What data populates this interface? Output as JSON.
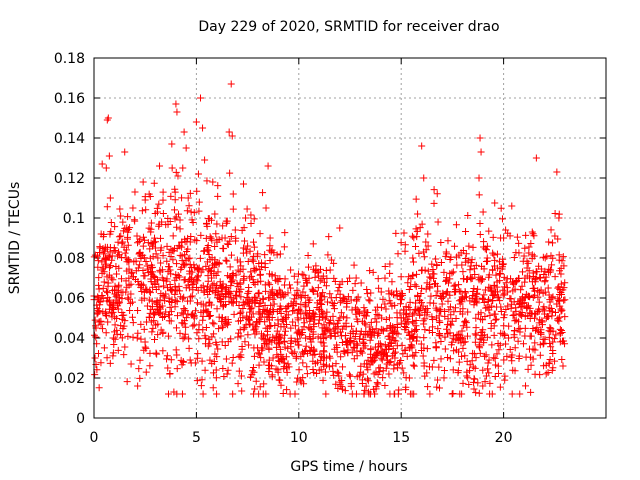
{
  "chart_data": {
    "type": "scatter",
    "title": "Day 229 of 2020, SRMTID for receiver drao",
    "xlabel": "GPS time / hours",
    "ylabel": "SRMTID / TECUs",
    "xlim": [
      0,
      25
    ],
    "ylim": [
      0,
      0.18
    ],
    "x_ticks": [
      0,
      5,
      10,
      15,
      20
    ],
    "x_tick_labels": [
      "0",
      "5",
      "10",
      "15",
      "20"
    ],
    "y_ticks": [
      0,
      0.02,
      0.04,
      0.06,
      0.08,
      0.1,
      0.12,
      0.14,
      0.16,
      0.18
    ],
    "y_tick_labels": [
      "0",
      "0.02",
      "0.04",
      "0.06",
      "0.08",
      "0.1",
      "0.12",
      "0.14",
      "0.16",
      "0.18"
    ],
    "grid": true,
    "marker": "plus",
    "series_color": "#ff0000",
    "series": [
      {
        "name": "SRMTID",
        "points": [
          [
            0.05,
            0.03
          ],
          [
            0.1,
            0.045
          ],
          [
            0.15,
            0.052
          ],
          [
            0.2,
            0.06
          ],
          [
            0.25,
            0.048
          ],
          [
            0.3,
            0.085
          ],
          [
            0.35,
            0.092
          ],
          [
            0.4,
            0.127
          ],
          [
            0.45,
            0.075
          ],
          [
            0.5,
            0.068
          ],
          [
            0.55,
            0.08
          ],
          [
            0.6,
            0.125
          ],
          [
            0.65,
            0.149
          ],
          [
            0.7,
            0.15
          ],
          [
            0.75,
            0.131
          ],
          [
            0.8,
            0.11
          ],
          [
            0.85,
            0.07
          ],
          [
            0.9,
            0.055
          ],
          [
            0.95,
            0.04
          ],
          [
            1.0,
            0.064
          ],
          [
            1.1,
            0.072
          ],
          [
            1.2,
            0.083
          ],
          [
            1.3,
            0.101
          ],
          [
            1.4,
            0.088
          ],
          [
            1.5,
            0.133
          ],
          [
            1.6,
            0.095
          ],
          [
            1.7,
            0.078
          ],
          [
            1.8,
            0.062
          ],
          [
            1.9,
            0.105
          ],
          [
            2.0,
            0.113
          ],
          [
            2.1,
            0.091
          ],
          [
            2.2,
            0.082
          ],
          [
            2.3,
            0.067
          ],
          [
            2.4,
            0.118
          ],
          [
            2.5,
            0.109
          ],
          [
            2.6,
            0.076
          ],
          [
            2.7,
            0.059
          ],
          [
            2.8,
            0.048
          ],
          [
            2.9,
            0.071
          ],
          [
            3.0,
            0.085
          ],
          [
            3.1,
            0.103
          ],
          [
            3.2,
            0.126
          ],
          [
            3.3,
            0.098
          ],
          [
            3.4,
            0.066
          ],
          [
            3.5,
            0.053
          ],
          [
            3.6,
            0.025
          ],
          [
            3.7,
            0.022
          ],
          [
            3.8,
            0.137
          ],
          [
            3.9,
            0.013
          ],
          [
            4.0,
            0.157
          ],
          [
            4.05,
            0.153
          ],
          [
            4.1,
            0.121
          ],
          [
            4.2,
            0.099
          ],
          [
            4.3,
            0.081
          ],
          [
            4.4,
            0.143
          ],
          [
            4.5,
            0.135
          ],
          [
            4.6,
            0.11
          ],
          [
            4.7,
            0.088
          ],
          [
            4.8,
            0.061
          ],
          [
            4.9,
            0.05
          ],
          [
            5.0,
            0.148
          ],
          [
            5.1,
            0.122
          ],
          [
            5.2,
            0.16
          ],
          [
            5.3,
            0.145
          ],
          [
            5.4,
            0.129
          ],
          [
            5.5,
            0.097
          ],
          [
            5.6,
            0.074
          ],
          [
            5.7,
            0.065
          ],
          [
            5.8,
            0.118
          ],
          [
            5.9,
            0.102
          ],
          [
            6.0,
            0.089
          ],
          [
            6.1,
            0.077
          ],
          [
            6.2,
            0.058
          ],
          [
            6.3,
            0.046
          ],
          [
            6.4,
            0.09
          ],
          [
            6.5,
            0.022
          ],
          [
            6.6,
            0.143
          ],
          [
            6.7,
            0.167
          ],
          [
            6.75,
            0.141
          ],
          [
            6.8,
            0.112
          ],
          [
            6.9,
            0.094
          ],
          [
            7.0,
            0.079
          ],
          [
            7.1,
            0.063
          ],
          [
            7.2,
            0.021
          ],
          [
            7.3,
            0.117
          ],
          [
            7.4,
            0.1
          ],
          [
            7.5,
            0.086
          ],
          [
            7.6,
            0.07
          ],
          [
            7.7,
            0.055
          ],
          [
            7.8,
            0.044
          ],
          [
            7.9,
            0.06
          ],
          [
            8.0,
            0.068
          ],
          [
            8.1,
            0.052
          ],
          [
            8.2,
            0.04
          ],
          [
            8.3,
            0.028
          ],
          [
            8.4,
            0.105
          ],
          [
            8.5,
            0.126
          ],
          [
            8.6,
            0.09
          ],
          [
            8.7,
            0.071
          ],
          [
            8.8,
            0.057
          ],
          [
            8.9,
            0.041
          ],
          [
            9.0,
            0.047
          ],
          [
            9.1,
            0.082
          ],
          [
            9.2,
            0.062
          ],
          [
            9.3,
            0.038
          ],
          [
            9.4,
            0.025
          ],
          [
            9.5,
            0.056
          ],
          [
            9.6,
            0.074
          ],
          [
            9.7,
            0.048
          ],
          [
            9.8,
            0.033
          ],
          [
            9.9,
            0.018
          ],
          [
            10.0,
            0.044
          ],
          [
            10.2,
            0.063
          ],
          [
            10.4,
            0.052
          ],
          [
            10.6,
            0.038
          ],
          [
            10.8,
            0.073
          ],
          [
            11.0,
            0.049
          ],
          [
            11.2,
            0.03
          ],
          [
            11.4,
            0.058
          ],
          [
            11.6,
            0.079
          ],
          [
            11.8,
            0.045
          ],
          [
            12.0,
            0.095
          ],
          [
            12.2,
            0.06
          ],
          [
            12.4,
            0.034
          ],
          [
            12.6,
            0.054
          ],
          [
            12.8,
            0.07
          ],
          [
            13.0,
            0.042
          ],
          [
            13.2,
            0.027
          ],
          [
            13.4,
            0.013
          ],
          [
            13.6,
            0.03
          ],
          [
            13.8,
            0.048
          ],
          [
            14.0,
            0.036
          ],
          [
            14.2,
            0.057
          ],
          [
            14.4,
            0.022
          ],
          [
            14.6,
            0.04
          ],
          [
            14.8,
            0.061
          ],
          [
            15.0,
            0.05
          ],
          [
            15.2,
            0.034
          ],
          [
            15.4,
            0.02
          ],
          [
            15.6,
            0.078
          ],
          [
            15.8,
            0.102
          ],
          [
            16.0,
            0.136
          ],
          [
            16.1,
            0.12
          ],
          [
            16.2,
            0.088
          ],
          [
            16.4,
            0.065
          ],
          [
            16.6,
            0.072
          ],
          [
            16.8,
            0.098
          ],
          [
            17.0,
            0.057
          ],
          [
            17.2,
            0.083
          ],
          [
            17.4,
            0.047
          ],
          [
            17.6,
            0.063
          ],
          [
            17.8,
            0.033
          ],
          [
            18.0,
            0.052
          ],
          [
            18.2,
            0.021
          ],
          [
            18.4,
            0.076
          ],
          [
            18.6,
            0.058
          ],
          [
            18.8,
            0.12
          ],
          [
            18.85,
            0.14
          ],
          [
            18.9,
            0.133
          ],
          [
            19.0,
            0.103
          ],
          [
            19.2,
            0.08
          ],
          [
            19.4,
            0.064
          ],
          [
            19.6,
            0.049
          ],
          [
            19.8,
            0.072
          ],
          [
            20.0,
            0.09
          ],
          [
            20.2,
            0.056
          ],
          [
            20.4,
            0.106
          ],
          [
            20.6,
            0.068
          ],
          [
            20.8,
            0.043
          ],
          [
            21.0,
            0.081
          ],
          [
            21.2,
            0.061
          ],
          [
            21.4,
            0.093
          ],
          [
            21.6,
            0.13
          ],
          [
            21.8,
            0.07
          ],
          [
            22.0,
            0.052
          ],
          [
            22.2,
            0.088
          ],
          [
            22.4,
            0.038
          ],
          [
            22.6,
            0.123
          ],
          [
            22.7,
            0.1
          ],
          [
            22.8,
            0.072
          ],
          [
            22.9,
            0.026
          ]
        ],
        "density_profile": {
          "hours": [
            0,
            2,
            4,
            6,
            8,
            10,
            12,
            14,
            16,
            18,
            20,
            22,
            23
          ],
          "center": [
            0.062,
            0.066,
            0.068,
            0.063,
            0.056,
            0.047,
            0.045,
            0.038,
            0.055,
            0.052,
            0.057,
            0.056,
            0.058
          ],
          "spread": [
            0.02,
            0.022,
            0.025,
            0.022,
            0.02,
            0.017,
            0.016,
            0.016,
            0.021,
            0.022,
            0.021,
            0.02,
            0.02
          ],
          "count": 2400
        }
      }
    ]
  }
}
